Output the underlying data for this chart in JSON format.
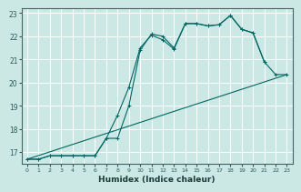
{
  "xlabel": "Humidex (Indice chaleur)",
  "bg_color": "#cce8e4",
  "grid_color": "#ffffff",
  "line_color": "#006666",
  "xlim": [
    -0.5,
    23.5
  ],
  "ylim": [
    16.5,
    23.2
  ],
  "yticks": [
    17,
    18,
    19,
    20,
    21,
    22,
    23
  ],
  "xticks": [
    0,
    1,
    2,
    3,
    4,
    5,
    6,
    7,
    8,
    9,
    10,
    11,
    12,
    13,
    14,
    15,
    16,
    17,
    18,
    19,
    20,
    21,
    22,
    23
  ],
  "line1_x": [
    0,
    1,
    2,
    3,
    4,
    5,
    6,
    7,
    8,
    9,
    10,
    11,
    12,
    13,
    14,
    15,
    16,
    17,
    18,
    19,
    20,
    21,
    22,
    23
  ],
  "line1_y": [
    16.7,
    16.7,
    16.85,
    16.85,
    16.85,
    16.85,
    16.85,
    17.6,
    17.6,
    19.0,
    21.4,
    22.1,
    22.0,
    21.5,
    22.55,
    22.55,
    22.45,
    22.5,
    22.9,
    22.3,
    22.15,
    20.9,
    20.35,
    20.35
  ],
  "line2_x": [
    0,
    1,
    2,
    3,
    4,
    5,
    6,
    7,
    8,
    9,
    10,
    11,
    12,
    13,
    14,
    15,
    16,
    17,
    18,
    19,
    20,
    21
  ],
  "line2_y": [
    16.7,
    16.7,
    16.85,
    16.85,
    16.85,
    16.85,
    16.85,
    17.6,
    18.6,
    19.8,
    21.5,
    22.05,
    21.85,
    21.45,
    22.55,
    22.55,
    22.45,
    22.5,
    22.9,
    22.3,
    22.15,
    20.9
  ],
  "line3_x": [
    0,
    23
  ],
  "line3_y": [
    16.7,
    20.35
  ],
  "marker1": "+",
  "marker2": "+"
}
